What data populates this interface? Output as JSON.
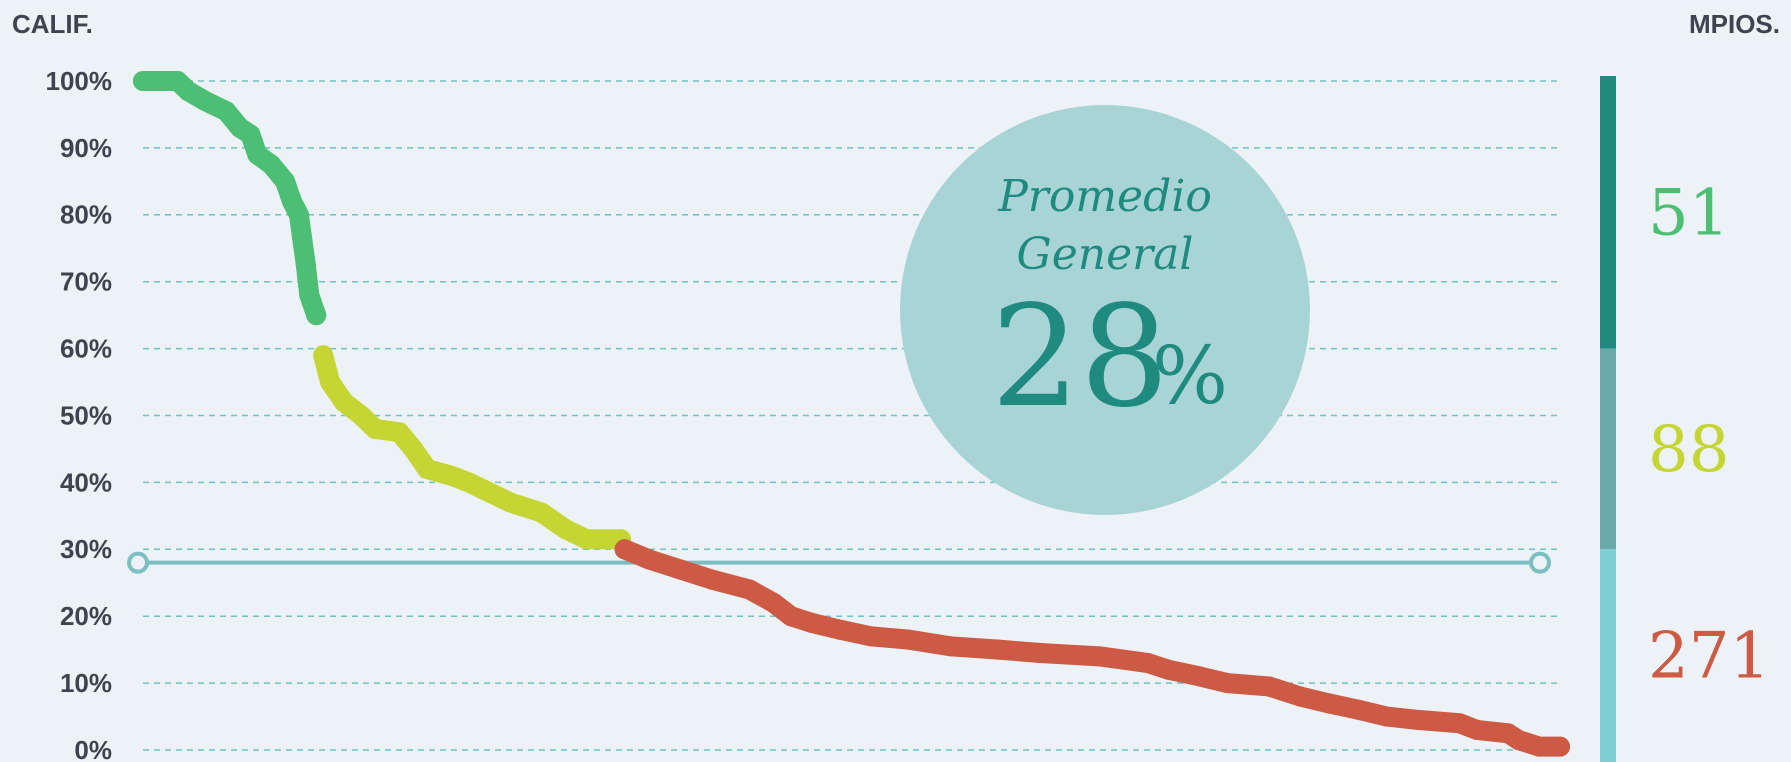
{
  "chart_data": {
    "type": "scatter",
    "y_label": "CALIF.",
    "count_label": "MPIOS.",
    "xlim": [
      1,
      410
    ],
    "ylim": [
      0,
      100
    ],
    "yticks": [
      {
        "value": 0,
        "label": "0%"
      },
      {
        "value": 10,
        "label": "10%"
      },
      {
        "value": 20,
        "label": "20%"
      },
      {
        "value": 30,
        "label": "30%"
      },
      {
        "value": 40,
        "label": "40%"
      },
      {
        "value": 50,
        "label": "50%"
      },
      {
        "value": 60,
        "label": "60%"
      },
      {
        "value": 70,
        "label": "70%"
      },
      {
        "value": 80,
        "label": "80%"
      },
      {
        "value": 90,
        "label": "90%"
      },
      {
        "value": 100,
        "label": "100%"
      }
    ],
    "grid": true,
    "series": [
      {
        "color": "#4cbf74",
        "x": [
          1,
          6,
          11,
          14,
          19,
          25,
          29,
          32,
          34,
          38,
          42,
          44,
          46,
          48,
          49,
          51
        ],
        "values": [
          100,
          100,
          100,
          98.5,
          97,
          95.5,
          93,
          92,
          89,
          87.5,
          85,
          82,
          80,
          72.5,
          68,
          65
        ]
      },
      {
        "color": "#c5d634",
        "x": [
          53,
          55,
          59,
          64,
          68,
          75,
          79,
          83,
          90,
          95,
          101,
          107,
          116,
          123,
          129,
          139
        ],
        "values": [
          59,
          55,
          52,
          50,
          48,
          47.5,
          45,
          42,
          41,
          40,
          38.5,
          37,
          35.5,
          33,
          31.5,
          31.5
        ]
      },
      {
        "color": "#cc5a44",
        "x": [
          140,
          147,
          156,
          165,
          176,
          183,
          188,
          194,
          202,
          211,
          222,
          234,
          248,
          260,
          277,
          291,
          297,
          306,
          314,
          326,
          335,
          343,
          352,
          360,
          369,
          381,
          386,
          395,
          398,
          404,
          410
        ],
        "values": [
          30,
          28.5,
          27,
          25.5,
          24,
          22,
          20,
          19,
          18,
          17,
          16.5,
          15.5,
          15,
          14.5,
          14,
          13,
          12,
          11,
          10,
          9.5,
          8,
          7,
          6,
          5,
          4.5,
          4,
          3,
          2.5,
          1.5,
          0.5,
          0.5
        ]
      }
    ],
    "average": 28,
    "average_unit": "%",
    "average_title": [
      "Promedio",
      "General"
    ],
    "average_color": "#7bbfc2",
    "bands": [
      {
        "from": 60,
        "to": 100,
        "count": 51,
        "color": "#1e8a80",
        "text_color": "#4cbf74"
      },
      {
        "from": 30,
        "to": 60,
        "count": 88,
        "color": "#6aa9a9",
        "text_color": "#c5d634"
      },
      {
        "from": 0,
        "to": 30,
        "count": 271,
        "color": "#7fcfd2",
        "text_color": "#cc5a44"
      }
    ]
  }
}
